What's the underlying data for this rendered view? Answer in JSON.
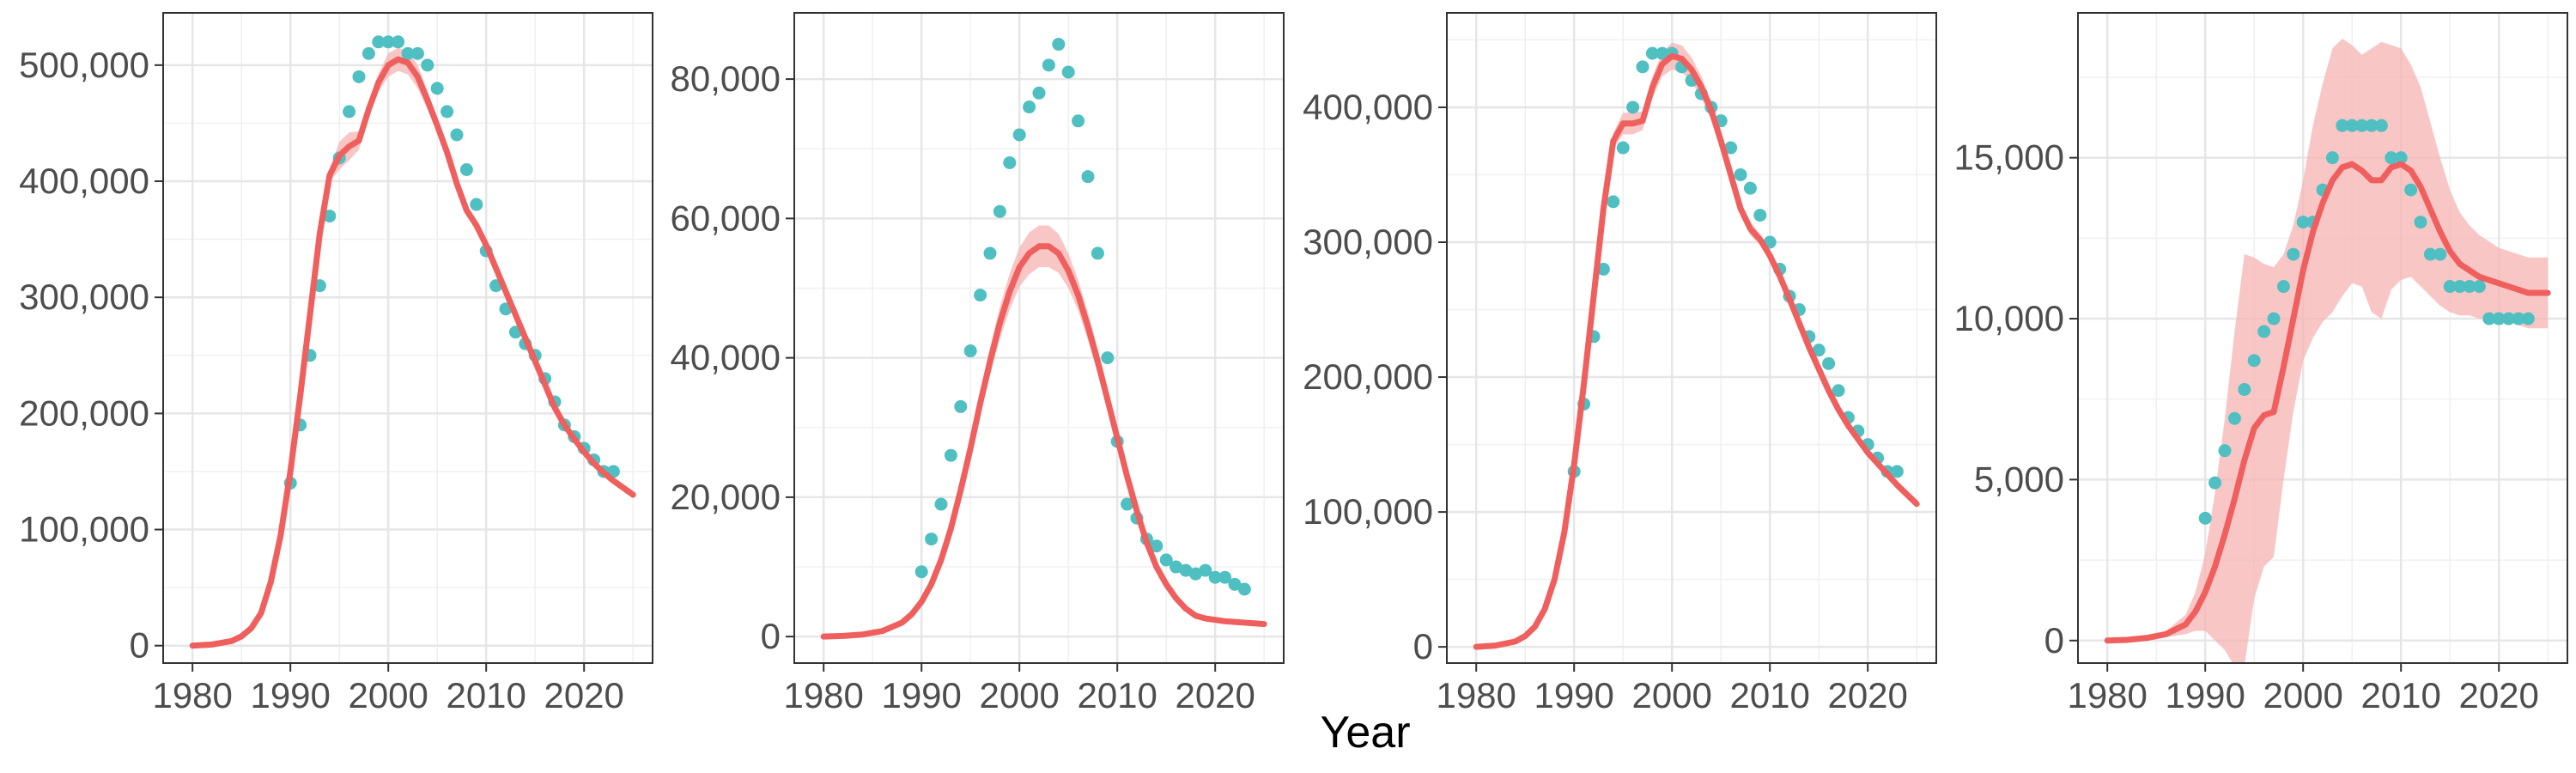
{
  "figure": {
    "xlabel": "Year",
    "colors": {
      "observed_points": "#4fbfc2",
      "fitted_line": "#ef5f5e",
      "ribbon": "#f7b3b3",
      "grid": "#e6e6e6",
      "panel_border": "#333333"
    }
  },
  "chart_data": [
    {
      "type": "line",
      "xlim": [
        1977,
        2027
      ],
      "ylim": [
        -15000,
        545000
      ],
      "x_ticks": [
        1980,
        1990,
        2000,
        2010,
        2020
      ],
      "y_ticks": [
        0,
        100000,
        200000,
        300000,
        400000,
        500000
      ],
      "x_tick_labels": [
        "1980",
        "1990",
        "2000",
        "2010",
        "2020"
      ],
      "y_tick_labels": [
        "0",
        "100,000",
        "200,000",
        "300,000",
        "400,000",
        "500,000"
      ],
      "grid": true,
      "points": {
        "x": [
          1990,
          1991,
          1992,
          1993,
          1994,
          1995,
          1996,
          1997,
          1998,
          1999,
          2000,
          2001,
          2002,
          2003,
          2004,
          2005,
          2006,
          2007,
          2008,
          2009,
          2010,
          2011,
          2012,
          2013,
          2014,
          2015,
          2016,
          2017,
          2018,
          2019,
          2020,
          2021,
          2022,
          2023
        ],
        "y": [
          140000,
          190000,
          250000,
          310000,
          370000,
          420000,
          460000,
          490000,
          510000,
          520000,
          520000,
          520000,
          510000,
          510000,
          500000,
          480000,
          460000,
          440000,
          410000,
          380000,
          340000,
          310000,
          290000,
          270000,
          260000,
          250000,
          230000,
          210000,
          190000,
          180000,
          170000,
          160000,
          150000,
          150000
        ]
      },
      "fit": {
        "x": [
          1980,
          1982,
          1984,
          1985,
          1986,
          1987,
          1988,
          1989,
          1990,
          1991,
          1992,
          1993,
          1994,
          1995,
          1996,
          1997,
          1998,
          1999,
          2000,
          2001,
          2002,
          2003,
          2004,
          2005,
          2006,
          2007,
          2008,
          2009,
          2010,
          2011,
          2012,
          2013,
          2014,
          2015,
          2016,
          2017,
          2018,
          2019,
          2020,
          2021,
          2022,
          2023,
          2024,
          2025
        ],
        "y": [
          0,
          1000,
          4000,
          8000,
          15000,
          28000,
          55000,
          95000,
          150000,
          215000,
          285000,
          355000,
          405000,
          422000,
          430000,
          435000,
          462000,
          485000,
          500000,
          505000,
          502000,
          490000,
          470000,
          448000,
          425000,
          398000,
          375000,
          362000,
          345000,
          325000,
          305000,
          285000,
          265000,
          245000,
          225000,
          205000,
          190000,
          178000,
          167000,
          157000,
          149000,
          142000,
          136000,
          130000
        ],
        "band_halfwidth": [
          0,
          0,
          0,
          0,
          0,
          0,
          1000,
          1500,
          2000,
          3000,
          4000,
          5000,
          6000,
          12000,
          12000,
          8000,
          7000,
          8000,
          10000,
          10000,
          10000,
          10000,
          8000,
          6000,
          5000,
          5000,
          5000,
          4000,
          4000,
          4000,
          4000,
          3000,
          3000,
          3000,
          3000,
          3000,
          3000,
          3000,
          3000,
          3000,
          3000,
          3000,
          3000,
          3000
        ]
      }
    },
    {
      "type": "line",
      "xlim": [
        1977,
        2027
      ],
      "ylim": [
        -3800,
        89500
      ],
      "x_ticks": [
        1980,
        1990,
        2000,
        2010,
        2020
      ],
      "y_ticks": [
        0,
        20000,
        40000,
        60000,
        80000
      ],
      "x_tick_labels": [
        "1980",
        "1990",
        "2000",
        "2010",
        "2020"
      ],
      "y_tick_labels": [
        "0",
        "20,000",
        "40,000",
        "60,000",
        "80,000"
      ],
      "grid": true,
      "points": {
        "x": [
          1990,
          1991,
          1992,
          1993,
          1994,
          1995,
          1996,
          1997,
          1998,
          1999,
          2000,
          2001,
          2002,
          2003,
          2004,
          2005,
          2006,
          2007,
          2008,
          2009,
          2010,
          2011,
          2012,
          2013,
          2014,
          2015,
          2016,
          2017,
          2018,
          2019,
          2020,
          2021,
          2022,
          2023
        ],
        "y": [
          9300,
          14000,
          19000,
          26000,
          33000,
          41000,
          49000,
          55000,
          61000,
          68000,
          72000,
          76000,
          78000,
          82000,
          85000,
          81000,
          74000,
          66000,
          55000,
          40000,
          28000,
          19000,
          17000,
          14000,
          13000,
          11000,
          10000,
          9500,
          9000,
          9500,
          8500,
          8500,
          7500,
          6800
        ]
      },
      "fit": {
        "x": [
          1980,
          1982,
          1984,
          1986,
          1988,
          1989,
          1990,
          1991,
          1992,
          1993,
          1994,
          1995,
          1996,
          1997,
          1998,
          1999,
          2000,
          2001,
          2002,
          2003,
          2004,
          2005,
          2006,
          2007,
          2008,
          2009,
          2010,
          2011,
          2012,
          2013,
          2014,
          2015,
          2016,
          2017,
          2018,
          2019,
          2020,
          2021,
          2022,
          2023,
          2024,
          2025
        ],
        "y": [
          0,
          100,
          300,
          800,
          2000,
          3200,
          5000,
          7500,
          11000,
          15500,
          21000,
          27000,
          33500,
          39500,
          45000,
          49500,
          53000,
          55000,
          56000,
          56000,
          55000,
          52500,
          49000,
          44500,
          39500,
          34000,
          28500,
          23000,
          18000,
          13500,
          10000,
          7500,
          5500,
          4000,
          3000,
          2600,
          2400,
          2200,
          2100,
          2000,
          1900,
          1800
        ],
        "band_halfwidth": [
          0,
          0,
          0,
          0,
          100,
          200,
          300,
          500,
          700,
          900,
          1100,
          1400,
          1700,
          2000,
          2300,
          2600,
          2800,
          3000,
          3000,
          3000,
          2800,
          2500,
          2200,
          2000,
          1800,
          1500,
          1200,
          1000,
          800,
          600,
          500,
          400,
          300,
          300,
          300,
          300,
          300,
          300,
          300,
          300,
          300,
          300
        ]
      }
    },
    {
      "type": "line",
      "xlim": [
        1977,
        2027
      ],
      "ylim": [
        -12000,
        470000
      ],
      "x_ticks": [
        1980,
        1990,
        2000,
        2010,
        2020
      ],
      "y_ticks": [
        0,
        100000,
        200000,
        300000,
        400000
      ],
      "x_tick_labels": [
        "1980",
        "1990",
        "2000",
        "2010",
        "2020"
      ],
      "y_tick_labels": [
        "0",
        "100,000",
        "200,000",
        "300,000",
        "400,000"
      ],
      "grid": true,
      "points": {
        "x": [
          1990,
          1991,
          1992,
          1993,
          1994,
          1995,
          1996,
          1997,
          1998,
          1999,
          2000,
          2001,
          2002,
          2003,
          2004,
          2005,
          2006,
          2007,
          2008,
          2009,
          2010,
          2011,
          2012,
          2013,
          2014,
          2015,
          2016,
          2017,
          2018,
          2019,
          2020,
          2021,
          2022,
          2023
        ],
        "y": [
          130000,
          180000,
          230000,
          280000,
          330000,
          370000,
          400000,
          430000,
          440000,
          440000,
          440000,
          430000,
          420000,
          410000,
          400000,
          390000,
          370000,
          350000,
          340000,
          320000,
          300000,
          280000,
          260000,
          250000,
          230000,
          220000,
          210000,
          190000,
          170000,
          160000,
          150000,
          140000,
          130000,
          130000
        ]
      },
      "fit": {
        "x": [
          1980,
          1982,
          1984,
          1985,
          1986,
          1987,
          1988,
          1989,
          1990,
          1991,
          1992,
          1993,
          1994,
          1995,
          1996,
          1997,
          1998,
          1999,
          2000,
          2001,
          2002,
          2003,
          2004,
          2005,
          2006,
          2007,
          2008,
          2009,
          2010,
          2011,
          2012,
          2013,
          2014,
          2015,
          2016,
          2017,
          2018,
          2019,
          2020,
          2021,
          2022,
          2023,
          2024,
          2025
        ],
        "y": [
          0,
          1000,
          4000,
          8000,
          15000,
          28000,
          50000,
          85000,
          135000,
          195000,
          260000,
          325000,
          375000,
          388000,
          388000,
          390000,
          415000,
          432000,
          438000,
          436000,
          428000,
          415000,
          398000,
          375000,
          350000,
          325000,
          310000,
          302000,
          290000,
          275000,
          258000,
          240000,
          222000,
          206000,
          190000,
          176000,
          164000,
          154000,
          144000,
          136000,
          128000,
          120000,
          113000,
          106000
        ],
        "band_halfwidth": [
          0,
          0,
          0,
          0,
          0,
          0,
          1000,
          1500,
          2000,
          3000,
          4000,
          5000,
          6000,
          8000,
          8000,
          7000,
          8000,
          9000,
          10000,
          10000,
          9000,
          8000,
          7000,
          6000,
          6000,
          5000,
          5000,
          4000,
          4000,
          4000,
          3000,
          3000,
          3000,
          3000,
          3000,
          3000,
          3000,
          3000,
          3000,
          3000,
          3000,
          3000,
          3000,
          3000
        ]
      }
    },
    {
      "type": "line",
      "xlim": [
        1977,
        2027
      ],
      "ylim": [
        -700,
        19500
      ],
      "x_ticks": [
        1980,
        1990,
        2000,
        2010,
        2020
      ],
      "y_ticks": [
        0,
        5000,
        10000,
        15000
      ],
      "x_tick_labels": [
        "1980",
        "1990",
        "2000",
        "2010",
        "2020"
      ],
      "y_tick_labels": [
        "0",
        "5,000",
        "10,000",
        "15,000"
      ],
      "grid": true,
      "points": {
        "x": [
          1990,
          1991,
          1992,
          1993,
          1994,
          1995,
          1996,
          1997,
          1998,
          1999,
          2000,
          2001,
          2002,
          2003,
          2004,
          2005,
          2006,
          2007,
          2008,
          2009,
          2010,
          2011,
          2012,
          2013,
          2014,
          2015,
          2016,
          2017,
          2018,
          2019,
          2020,
          2021,
          2022,
          2023
        ],
        "y": [
          3800,
          4900,
          5900,
          6900,
          7800,
          8700,
          9600,
          10000,
          11000,
          12000,
          13000,
          13000,
          14000,
          15000,
          16000,
          16000,
          16000,
          16000,
          16000,
          15000,
          15000,
          14000,
          13000,
          12000,
          12000,
          11000,
          11000,
          11000,
          11000,
          10000,
          10000,
          10000,
          10000,
          10000
        ]
      },
      "fit": {
        "x": [
          1980,
          1982,
          1984,
          1986,
          1988,
          1989,
          1990,
          1991,
          1992,
          1993,
          1994,
          1995,
          1996,
          1997,
          1998,
          1999,
          2000,
          2001,
          2002,
          2003,
          2004,
          2005,
          2006,
          2007,
          2008,
          2009,
          2010,
          2011,
          2012,
          2013,
          2014,
          2015,
          2016,
          2017,
          2018,
          2019,
          2020,
          2021,
          2022,
          2023,
          2024,
          2025
        ],
        "y": [
          0,
          20,
          80,
          200,
          500,
          900,
          1500,
          2300,
          3300,
          4400,
          5600,
          6600,
          7000,
          7100,
          8500,
          10000,
          11500,
          12700,
          13600,
          14300,
          14700,
          14800,
          14600,
          14300,
          14300,
          14700,
          14800,
          14600,
          14100,
          13400,
          12700,
          12100,
          11700,
          11500,
          11300,
          11200,
          11100,
          11000,
          10900,
          10800,
          10800,
          10800
        ],
        "band_halfwidth": [
          0,
          10,
          40,
          100,
          300,
          600,
          1200,
          2300,
          3600,
          5200,
          6400,
          5300,
          4700,
          4500,
          3500,
          2900,
          2800,
          3300,
          3700,
          4100,
          4000,
          3700,
          3600,
          4100,
          4300,
          3800,
          3600,
          3300,
          3100,
          2700,
          2300,
          1900,
          1600,
          1400,
          1300,
          1200,
          1100,
          1100,
          1100,
          1100,
          1100,
          1100
        ]
      }
    }
  ]
}
